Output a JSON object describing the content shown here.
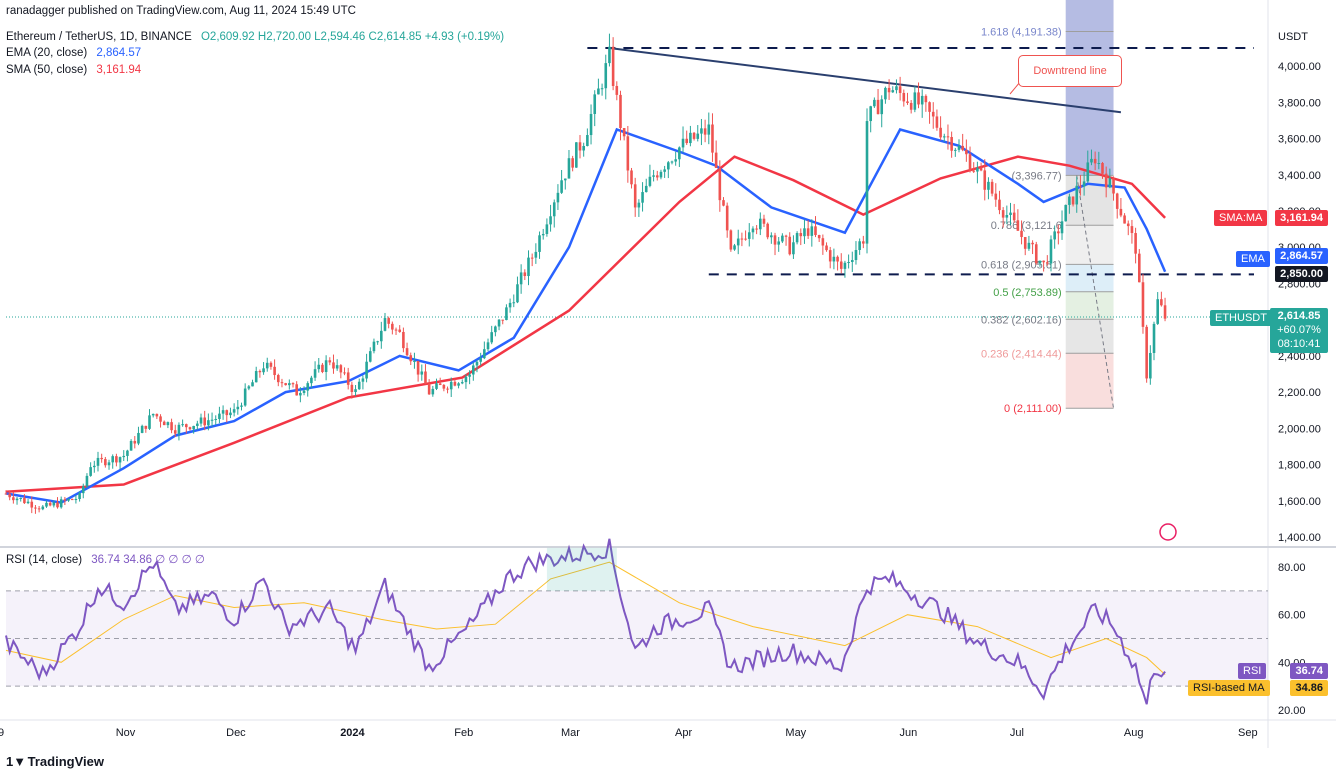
{
  "publisher": "ranadagger published on TradingView.com, Aug 11, 2024 15:49 UTC",
  "legend": {
    "symbol_line": "Ethereum / TetherUS, 1D, BINANCE",
    "ohlc": "O2,609.92  H2,720.00  L2,594.46  C2,614.85  +4.93 (+0.19%)",
    "ema_label": "EMA (20, close)",
    "ema_value": "2,864.57",
    "sma_label": "SMA (50, close)",
    "sma_value": "3,161.94",
    "rsi_label": "RSI (14, close)",
    "rsi_values": "36.74  34.86  ∅  ∅  ∅  ∅"
  },
  "currency": "USDT",
  "annotation": "Downtrend line",
  "tags": {
    "sma": {
      "label": "SMA:MA",
      "value": "3,161.94",
      "color": "#f23645"
    },
    "ema": {
      "label": "EMA",
      "value": "2,864.57",
      "color": "#2962ff"
    },
    "level": {
      "value": "2,850.00",
      "color": "#131722"
    },
    "price": {
      "label": "ETHUSDT",
      "value": "2,614.85",
      "change": "+60.07%",
      "countdown": "08:10:41",
      "color": "#26a69a"
    },
    "rsi": {
      "label": "RSI",
      "value": "36.74",
      "color": "#7e57c2"
    },
    "rsi_ma": {
      "label": "RSI-based MA",
      "value": "34.86",
      "color": "#fbc02d"
    }
  },
  "branding": "TradingView",
  "colors": {
    "up": "#26a69a",
    "down": "#ef5350",
    "ema": "#2962ff",
    "sma": "#f23645",
    "rsi": "#7e57c2",
    "rsi_ma": "#fbc02d",
    "trendline": "#2a3f6e"
  },
  "chart_data": [
    {
      "type": "candlestick",
      "title": "Ethereum / TetherUS, 1D, BINANCE",
      "ylim": [
        1400,
        4100
      ],
      "y_ticks": [
        "1,400.00",
        "1,600.00",
        "1,800.00",
        "2,000.00",
        "2,200.00",
        "2,400.00",
        "2,600.00",
        "2,800.00",
        "3,000.00",
        "3,200.00",
        "3,400.00",
        "3,600.00",
        "3,800.00",
        "4,000.00"
      ],
      "x_ticks": [
        {
          "label": "9",
          "date": "2023-09-30"
        },
        {
          "label": "Nov",
          "date": "2023-11-01"
        },
        {
          "label": "Dec",
          "date": "2023-12-01"
        },
        {
          "label": "2024",
          "date": "2024-01-01"
        },
        {
          "label": "Feb",
          "date": "2024-02-01"
        },
        {
          "label": "Mar",
          "date": "2024-03-01"
        },
        {
          "label": "Apr",
          "date": "2024-04-01"
        },
        {
          "label": "May",
          "date": "2024-05-01"
        },
        {
          "label": "Jun",
          "date": "2024-06-01"
        },
        {
          "label": "Jul",
          "date": "2024-07-01"
        },
        {
          "label": "Aug",
          "date": "2024-08-01"
        },
        {
          "label": "Sep",
          "date": "2024-09-01"
        }
      ],
      "price_path": [
        [
          "2023-09-30",
          1640
        ],
        [
          "2023-10-10",
          1560
        ],
        [
          "2023-10-20",
          1620
        ],
        [
          "2023-10-23",
          1800
        ],
        [
          "2023-11-01",
          1850
        ],
        [
          "2023-11-09",
          2080
        ],
        [
          "2023-11-15",
          2000
        ],
        [
          "2023-11-25",
          2050
        ],
        [
          "2023-12-01",
          2090
        ],
        [
          "2023-12-09",
          2350
        ],
        [
          "2023-12-18",
          2200
        ],
        [
          "2023-12-27",
          2380
        ],
        [
          "2024-01-03",
          2200
        ],
        [
          "2024-01-11",
          2600
        ],
        [
          "2024-01-15",
          2520
        ],
        [
          "2024-01-23",
          2200
        ],
        [
          "2024-02-03",
          2300
        ],
        [
          "2024-02-13",
          2650
        ],
        [
          "2024-02-20",
          2950
        ],
        [
          "2024-02-28",
          3380
        ],
        [
          "2024-03-05",
          3600
        ],
        [
          "2024-03-12",
          4050
        ],
        [
          "2024-03-19",
          3200
        ],
        [
          "2024-03-24",
          3400
        ],
        [
          "2024-03-31",
          3550
        ],
        [
          "2024-04-08",
          3650
        ],
        [
          "2024-04-14",
          2950
        ],
        [
          "2024-04-20",
          3150
        ],
        [
          "2024-04-30",
          3000
        ],
        [
          "2024-05-05",
          3100
        ],
        [
          "2024-05-14",
          2880
        ],
        [
          "2024-05-20",
          3050
        ],
        [
          "2024-05-21",
          3700
        ],
        [
          "2024-05-27",
          3880
        ],
        [
          "2024-06-05",
          3780
        ],
        [
          "2024-06-10",
          3650
        ],
        [
          "2024-06-17",
          3500
        ],
        [
          "2024-06-24",
          3300
        ],
        [
          "2024-07-04",
          3000
        ],
        [
          "2024-07-08",
          2900
        ],
        [
          "2024-07-14",
          3200
        ],
        [
          "2024-07-22",
          3500
        ],
        [
          "2024-07-27",
          3300
        ],
        [
          "2024-08-02",
          3000
        ],
        [
          "2024-08-05",
          2300
        ],
        [
          "2024-08-08",
          2700
        ],
        [
          "2024-08-10",
          2615
        ]
      ],
      "ema20": [
        [
          "2023-09-30",
          1640
        ],
        [
          "2023-10-15",
          1590
        ],
        [
          "2023-11-01",
          1780
        ],
        [
          "2023-11-15",
          1960
        ],
        [
          "2023-12-01",
          2040
        ],
        [
          "2023-12-15",
          2200
        ],
        [
          "2024-01-01",
          2260
        ],
        [
          "2024-01-15",
          2400
        ],
        [
          "2024-01-31",
          2320
        ],
        [
          "2024-02-15",
          2500
        ],
        [
          "2024-03-01",
          3000
        ],
        [
          "2024-03-14",
          3650
        ],
        [
          "2024-04-01",
          3520
        ],
        [
          "2024-04-10",
          3450
        ],
        [
          "2024-04-25",
          3220
        ],
        [
          "2024-05-15",
          3080
        ],
        [
          "2024-05-30",
          3650
        ],
        [
          "2024-06-15",
          3560
        ],
        [
          "2024-07-01",
          3350
        ],
        [
          "2024-07-08",
          3250
        ],
        [
          "2024-07-20",
          3350
        ],
        [
          "2024-07-30",
          3330
        ],
        [
          "2024-08-05",
          3100
        ],
        [
          "2024-08-10",
          2864.57
        ]
      ],
      "sma50": [
        [
          "2023-09-30",
          1650
        ],
        [
          "2023-11-01",
          1690
        ],
        [
          "2023-12-01",
          1920
        ],
        [
          "2024-01-01",
          2170
        ],
        [
          "2024-02-01",
          2280
        ],
        [
          "2024-03-01",
          2650
        ],
        [
          "2024-03-31",
          3250
        ],
        [
          "2024-04-15",
          3500
        ],
        [
          "2024-05-01",
          3370
        ],
        [
          "2024-05-20",
          3180
        ],
        [
          "2024-06-10",
          3380
        ],
        [
          "2024-07-01",
          3500
        ],
        [
          "2024-07-15",
          3450
        ],
        [
          "2024-08-01",
          3350
        ],
        [
          "2024-08-10",
          3161.94
        ]
      ],
      "horizontal_levels": [
        4100,
        2850
      ],
      "trendline": [
        [
          "2024-03-12",
          4100
        ],
        [
          "2024-07-29",
          3745
        ]
      ],
      "fibonacci": {
        "levels": [
          {
            "ratio": "1.618",
            "price": 4191.38,
            "text": "1.618 (4,191.38)"
          },
          {
            "ratio": "1",
            "price": 3396.77,
            "text": "(3,396.77)"
          },
          {
            "ratio": "0.786",
            "price": 3121.6,
            "text": "0.786 (3,121.6"
          },
          {
            "ratio": "0.618",
            "price": 2905.61,
            "text": "0.618 (2,905.61)"
          },
          {
            "ratio": "0.5",
            "price": 2753.89,
            "text": "0.5 (2,753.89)"
          },
          {
            "ratio": "0.382",
            "price": 2602.16,
            "text": "0.382 (2,602.16)"
          },
          {
            "ratio": "0.236",
            "price": 2414.44,
            "text": "0.236 (2,414.44)"
          },
          {
            "ratio": "0",
            "price": 2111.0,
            "text": "0 (2,111.00)"
          }
        ]
      },
      "last_price": 2614.85
    },
    {
      "type": "line",
      "title": "RSI (14, close)",
      "ylim": [
        15,
        90
      ],
      "y_ticks": [
        "20.00",
        "40.00",
        "60.00",
        "80.00"
      ],
      "bands": [
        30,
        50,
        70
      ],
      "rsi": [
        [
          "2023-09-30",
          48
        ],
        [
          "2023-10-10",
          35
        ],
        [
          "2023-10-20",
          55
        ],
        [
          "2023-10-25",
          72
        ],
        [
          "2023-11-01",
          65
        ],
        [
          "2023-11-09",
          82
        ],
        [
          "2023-11-15",
          62
        ],
        [
          "2023-11-25",
          68
        ],
        [
          "2023-12-01",
          58
        ],
        [
          "2023-12-09",
          75
        ],
        [
          "2023-12-15",
          55
        ],
        [
          "2023-12-27",
          62
        ],
        [
          "2024-01-03",
          45
        ],
        [
          "2024-01-11",
          72
        ],
        [
          "2024-01-15",
          60
        ],
        [
          "2024-01-23",
          38
        ],
        [
          "2024-02-03",
          55
        ],
        [
          "2024-02-13",
          75
        ],
        [
          "2024-02-20",
          82
        ],
        [
          "2024-02-28",
          84
        ],
        [
          "2024-03-12",
          88
        ],
        [
          "2024-03-19",
          45
        ],
        [
          "2024-03-25",
          55
        ],
        [
          "2024-04-08",
          62
        ],
        [
          "2024-04-14",
          38
        ],
        [
          "2024-04-30",
          45
        ],
        [
          "2024-05-14",
          38
        ],
        [
          "2024-05-21",
          72
        ],
        [
          "2024-05-27",
          75
        ],
        [
          "2024-06-10",
          62
        ],
        [
          "2024-06-20",
          48
        ],
        [
          "2024-07-01",
          40
        ],
        [
          "2024-07-08",
          28
        ],
        [
          "2024-07-14",
          45
        ],
        [
          "2024-07-22",
          62
        ],
        [
          "2024-07-27",
          55
        ],
        [
          "2024-08-02",
          38
        ],
        [
          "2024-08-05",
          22
        ],
        [
          "2024-08-07",
          38
        ],
        [
          "2024-08-10",
          36.74
        ]
      ],
      "rsi_ma": [
        [
          "2023-09-30",
          45
        ],
        [
          "2023-10-15",
          40
        ],
        [
          "2023-11-01",
          58
        ],
        [
          "2023-11-15",
          68
        ],
        [
          "2023-12-01",
          63
        ],
        [
          "2023-12-20",
          65
        ],
        [
          "2024-01-10",
          58
        ],
        [
          "2024-01-25",
          54
        ],
        [
          "2024-02-10",
          56
        ],
        [
          "2024-02-25",
          75
        ],
        [
          "2024-03-12",
          82
        ],
        [
          "2024-03-31",
          65
        ],
        [
          "2024-04-20",
          55
        ],
        [
          "2024-05-15",
          47
        ],
        [
          "2024-06-01",
          60
        ],
        [
          "2024-06-20",
          55
        ],
        [
          "2024-07-10",
          42
        ],
        [
          "2024-07-25",
          50
        ],
        [
          "2024-08-05",
          42
        ],
        [
          "2024-08-10",
          34.86
        ]
      ]
    }
  ]
}
